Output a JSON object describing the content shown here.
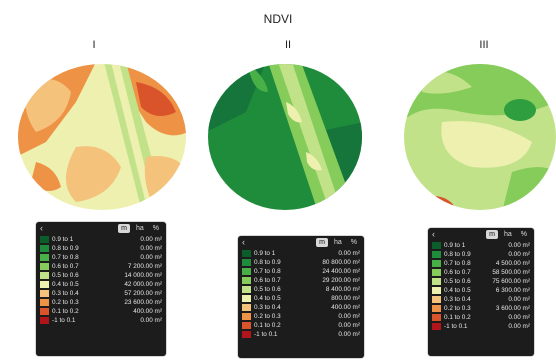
{
  "title": "NDVI",
  "fields": [
    {
      "numeral": "I",
      "units": [
        "m",
        "ha",
        "%"
      ],
      "active_unit": "m",
      "rows": [
        {
          "range": "0.9 to 1",
          "value": "0.00 m²"
        },
        {
          "range": "0.8 to 0.9",
          "value": "0.00 m²"
        },
        {
          "range": "0.7 to 0.8",
          "value": "0.00 m²"
        },
        {
          "range": "0.6 to 0.7",
          "value": "7 200.00 m²"
        },
        {
          "range": "0.5 to 0.6",
          "value": "14 000.00 m²"
        },
        {
          "range": "0.4 to 0.5",
          "value": "42 000.00 m²"
        },
        {
          "range": "0.3 to 0.4",
          "value": "57 200.00 m²"
        },
        {
          "range": "0.2 to 0.3",
          "value": "23 600.00 m²"
        },
        {
          "range": "0.1 to 0.2",
          "value": "400.00 m²"
        },
        {
          "range": "-1 to 0.1",
          "value": "0.00 m²"
        }
      ]
    },
    {
      "numeral": "II",
      "units": [
        "m",
        "ha",
        "%"
      ],
      "active_unit": "m",
      "rows": [
        {
          "range": "0.9 to 1",
          "value": "0.00 m²"
        },
        {
          "range": "0.8 to 0.9",
          "value": "80 800.00 m²"
        },
        {
          "range": "0.7 to 0.8",
          "value": "24 400.00 m²"
        },
        {
          "range": "0.6 to 0.7",
          "value": "29 200.00 m²"
        },
        {
          "range": "0.5 to 0.6",
          "value": "8 400.00 m²"
        },
        {
          "range": "0.4 to 0.5",
          "value": "800.00 m²"
        },
        {
          "range": "0.3 to 0.4",
          "value": "400.00 m²"
        },
        {
          "range": "0.2 to 0.3",
          "value": "0.00 m²"
        },
        {
          "range": "0.1 to 0.2",
          "value": "0.00 m²"
        },
        {
          "range": "-1 to 0.1",
          "value": "0.00 m²"
        }
      ]
    },
    {
      "numeral": "III",
      "units": [
        "m",
        "ha",
        "%"
      ],
      "active_unit": "m",
      "rows": [
        {
          "range": "0.9 to 1",
          "value": "0.00 m²"
        },
        {
          "range": "0.8 to 0.9",
          "value": "0.00 m²"
        },
        {
          "range": "0.7 to 0.8",
          "value": "4 500.00 m²"
        },
        {
          "range": "0.6 to 0.7",
          "value": "58 500.00 m²"
        },
        {
          "range": "0.5 to 0.6",
          "value": "75 600.00 m²"
        },
        {
          "range": "0.4 to 0.5",
          "value": "6 300.00 m²"
        },
        {
          "range": "0.3 to 0.4",
          "value": "0.00 m²"
        },
        {
          "range": "0.2 to 0.3",
          "value": "3 600.00 m²"
        },
        {
          "range": "0.1 to 0.2",
          "value": "0.00 m²"
        },
        {
          "range": "-1 to 0.1",
          "value": "0.00 m²"
        }
      ]
    }
  ],
  "legend_colors": [
    "#0b5e2a",
    "#1e8c3a",
    "#49b048",
    "#86cc5a",
    "#c2e28a",
    "#eef0b0",
    "#f4c27a",
    "#ee9246",
    "#d9532b",
    "#b0151b"
  ],
  "back_icon": "chevron-left-icon"
}
